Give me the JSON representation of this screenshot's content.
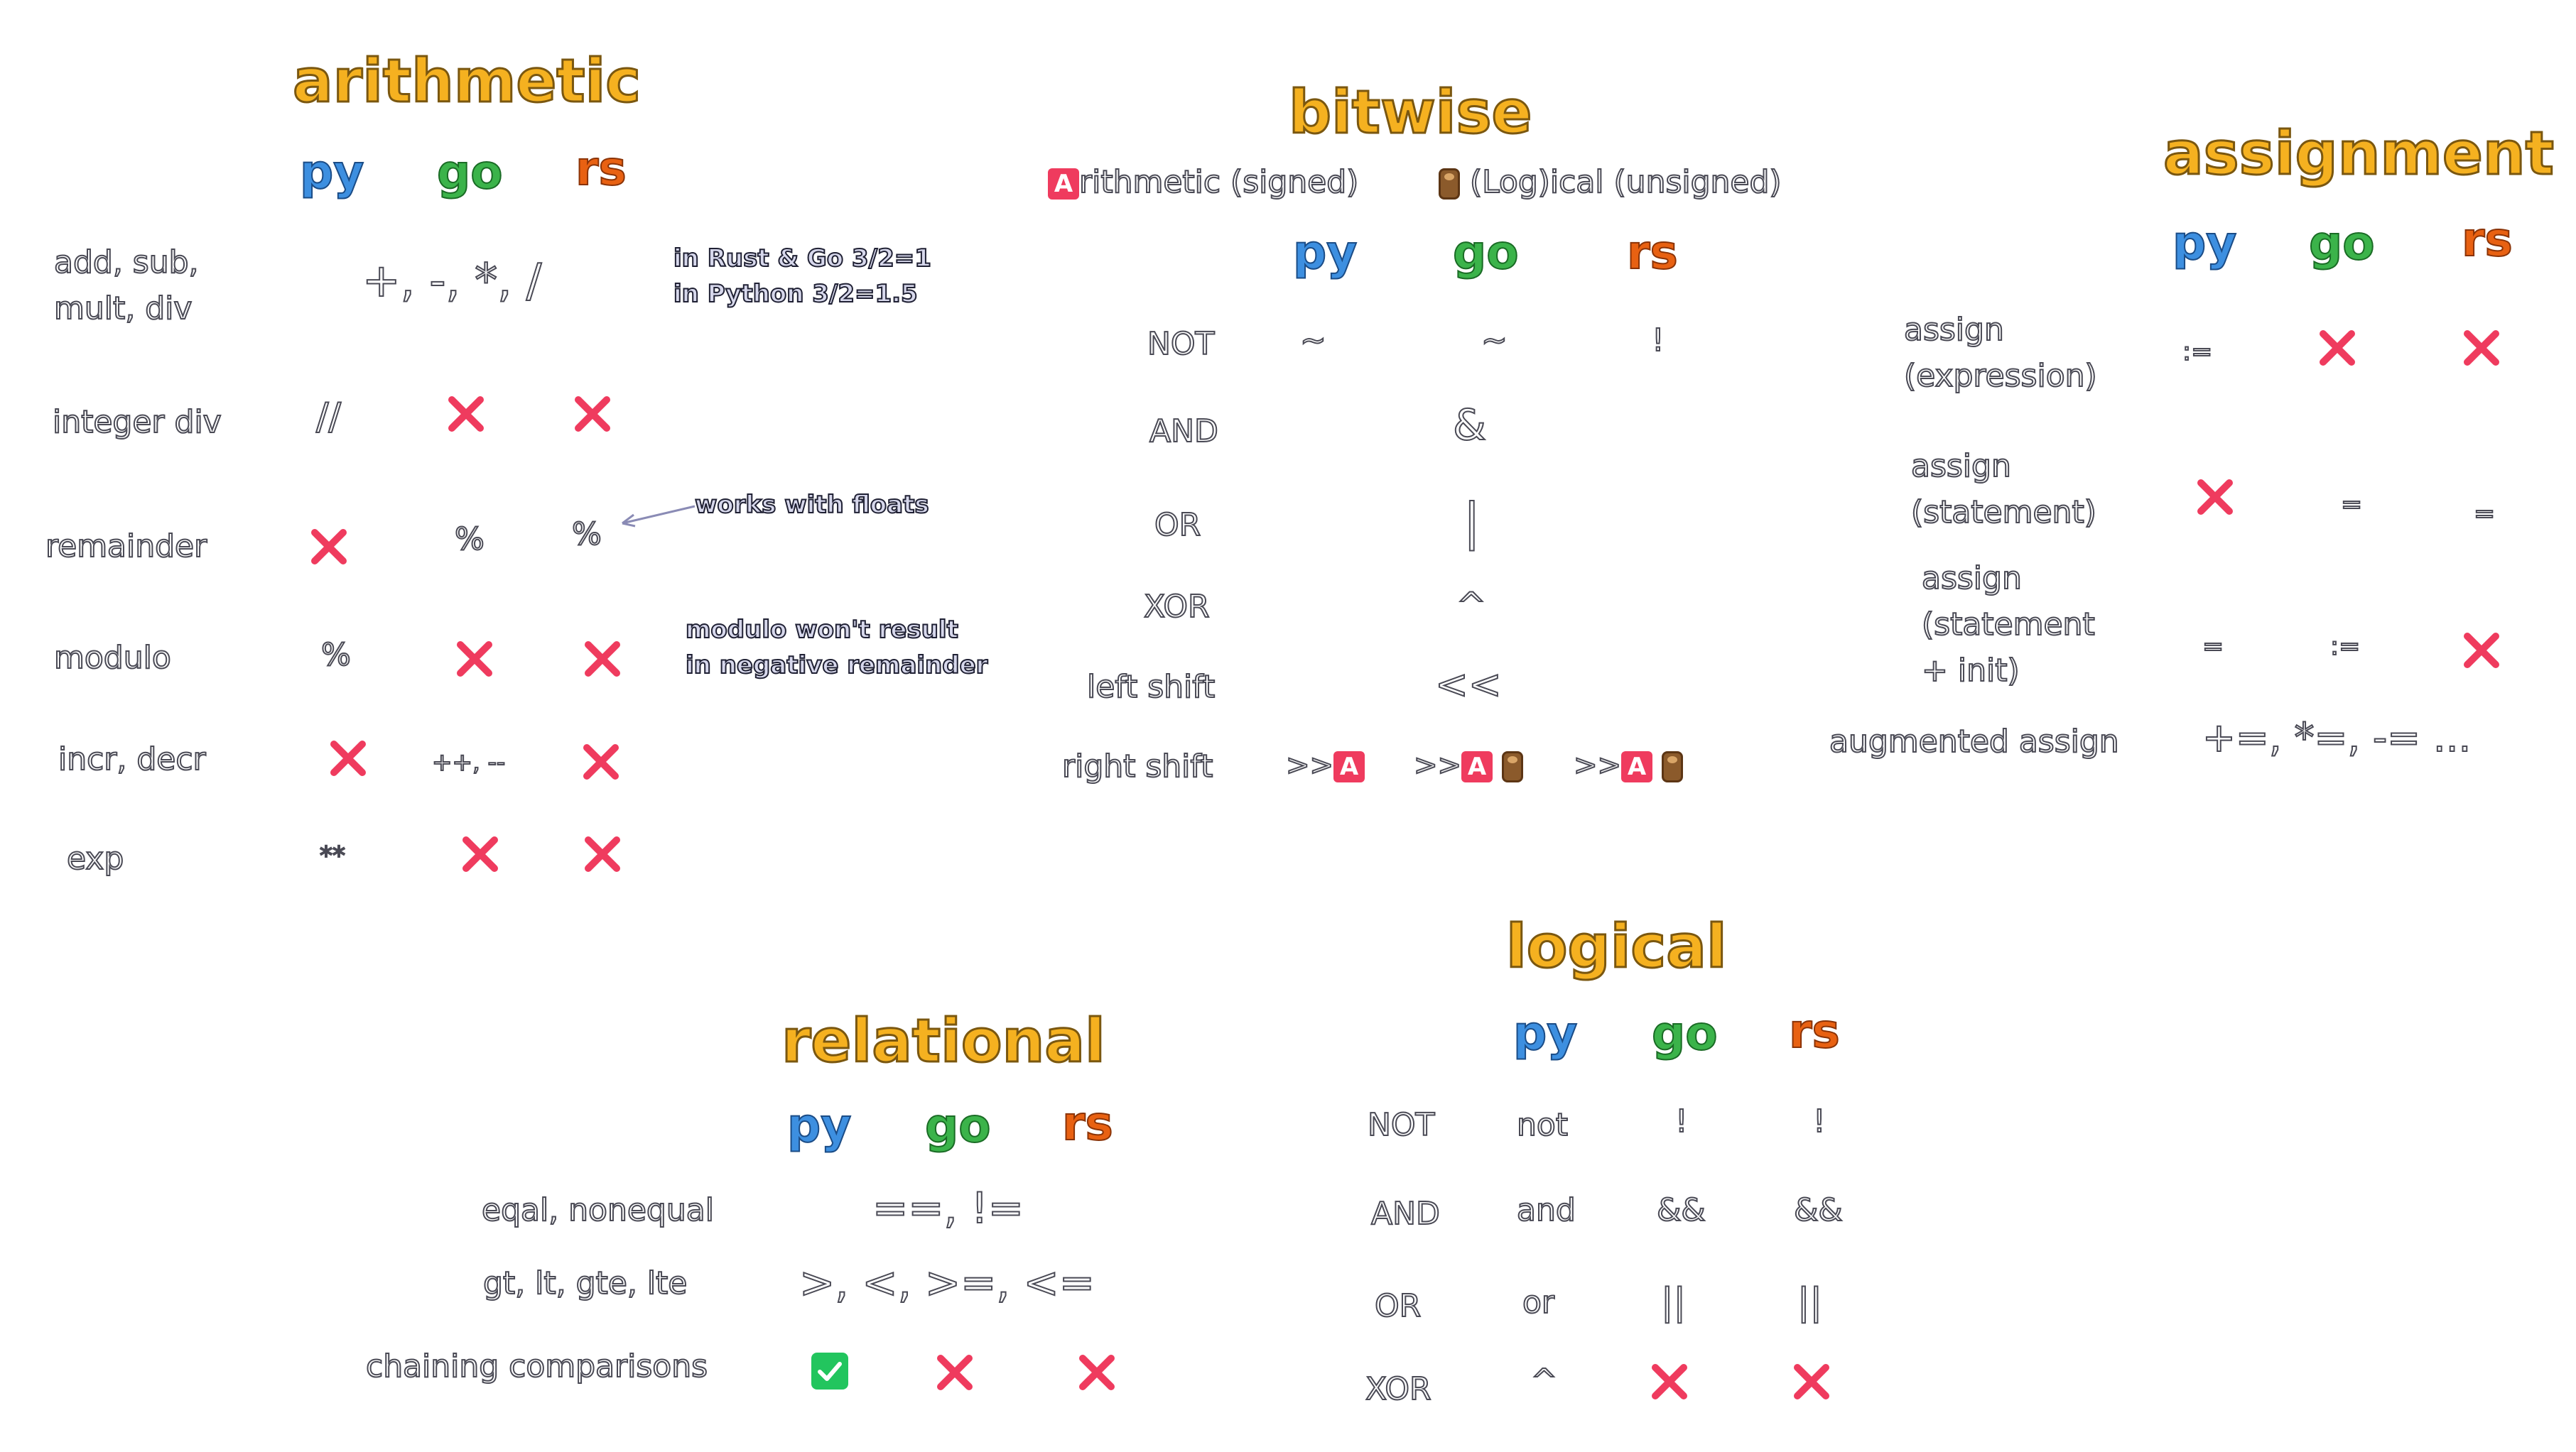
{
  "colors": {
    "title": "#f5b120",
    "py": "#3d8fe0",
    "go": "#3bb34a",
    "rs": "#e86112",
    "cross": "#ef3b5e",
    "check": "#22c55e",
    "signed_badge": "#ef3b5e",
    "log_icon": "#8b5a2b"
  },
  "langs": {
    "py": "py",
    "go": "go",
    "rs": "rs"
  },
  "arithmetic": {
    "title": "arithmetic",
    "add_label_1": "add, sub,",
    "add_label_2": "mult, div",
    "add_ops": "+, -, *, /",
    "intdiv_label": "integer div",
    "intdiv_py": "//",
    "remainder_label": "remainder",
    "remainder_go": "%",
    "remainder_rs": "%",
    "modulo_label": "modulo",
    "modulo_py": "%",
    "incr_label": "incr, decr",
    "incr_go": "++, --",
    "exp_label": "exp",
    "exp_py": "**",
    "note_div_1": "in Rust & Go 3/2=1",
    "note_div_2": "in Python 3/2=1.5",
    "note_floats": "works with floats",
    "note_modulo_1": "modulo won't result",
    "note_modulo_2": "in negative remainder"
  },
  "bitwise": {
    "title": "bitwise",
    "legend_signed": "rithmetic (signed)",
    "legend_signed_badge": "A",
    "legend_logical": "(Log)ical (unsigned)",
    "not_label": "NOT",
    "not_py": "~",
    "not_go": "~",
    "not_rs": "!",
    "and_label": "AND",
    "and_ops": "&",
    "or_label": "OR",
    "or_ops": "|",
    "xor_label": "XOR",
    "xor_ops": "^",
    "lshift_label": "left shift",
    "lshift_ops": "<<",
    "rshift_label": "right shift",
    "rshift_op": ">>"
  },
  "assignment": {
    "title": "assignment",
    "expr_label_1": "assign",
    "expr_label_2": "(expression)",
    "expr_py": ":=",
    "stmt_label_1": "assign",
    "stmt_label_2": "(statement)",
    "stmt_go": "=",
    "stmt_rs": "=",
    "init_label_1": "assign",
    "init_label_2": "(statement",
    "init_label_3": "+ init)",
    "init_py": "=",
    "init_go": ":=",
    "aug_label": "augmented assign",
    "aug_ops": "+=, *=, -= ..."
  },
  "relational": {
    "title": "relational",
    "eq_label": "eqal, nonequal",
    "eq_ops": "==, !=",
    "cmp_label": "gt, lt, gte, lte",
    "cmp_ops": ">, <, >=, <=",
    "chain_label": "chaining comparisons"
  },
  "logical": {
    "title": "logical",
    "not_label": "NOT",
    "not_py": "not",
    "not_go": "!",
    "not_rs": "!",
    "and_label": "AND",
    "and_py": "and",
    "and_go": "&&",
    "and_rs": "&&",
    "or_label": "OR",
    "or_py": "or",
    "or_go": "||",
    "or_rs": "||",
    "xor_label": "XOR",
    "xor_py": "^"
  }
}
